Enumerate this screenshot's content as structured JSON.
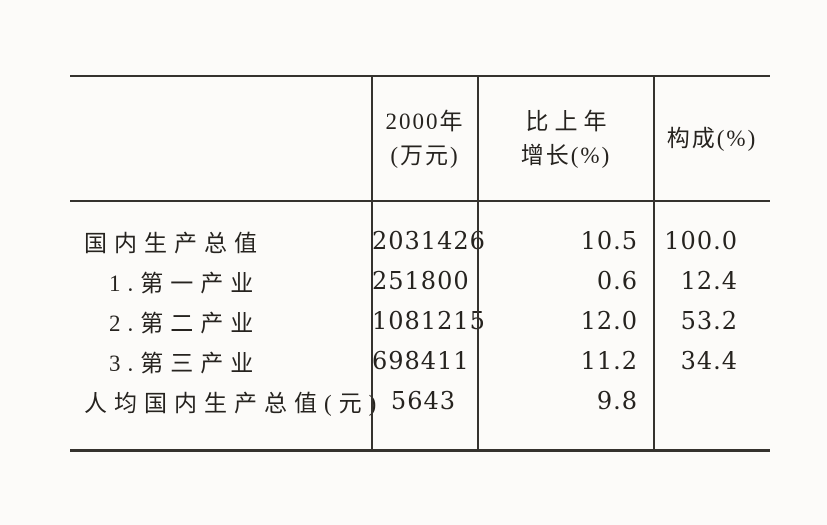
{
  "colors": {
    "paper": "#fcfbf9",
    "ink": "#26231f",
    "rule_line": "#35322e"
  },
  "table": {
    "header": {
      "year_line1": "2000年",
      "year_line2": "(万元)",
      "growth_line1": "比上年",
      "growth_line2": "增长(%)",
      "composition": "构成(%)"
    },
    "rows": [
      {
        "label": "国内生产总值",
        "value_2000": "2031426",
        "growth": "10.5",
        "composition": "100.0"
      },
      {
        "label": "1.第一产业",
        "value_2000": "251800",
        "growth": "0.6",
        "composition": "12.4"
      },
      {
        "label": "2.第二产业",
        "value_2000": "1081215",
        "growth": "12.0",
        "composition": "53.2"
      },
      {
        "label": "3.第三产业",
        "value_2000": "698411",
        "growth": "11.2",
        "composition": "34.4"
      },
      {
        "label": "人均国内生产总值(元)",
        "value_2000": "5643",
        "growth": "9.8",
        "composition": ""
      }
    ]
  }
}
